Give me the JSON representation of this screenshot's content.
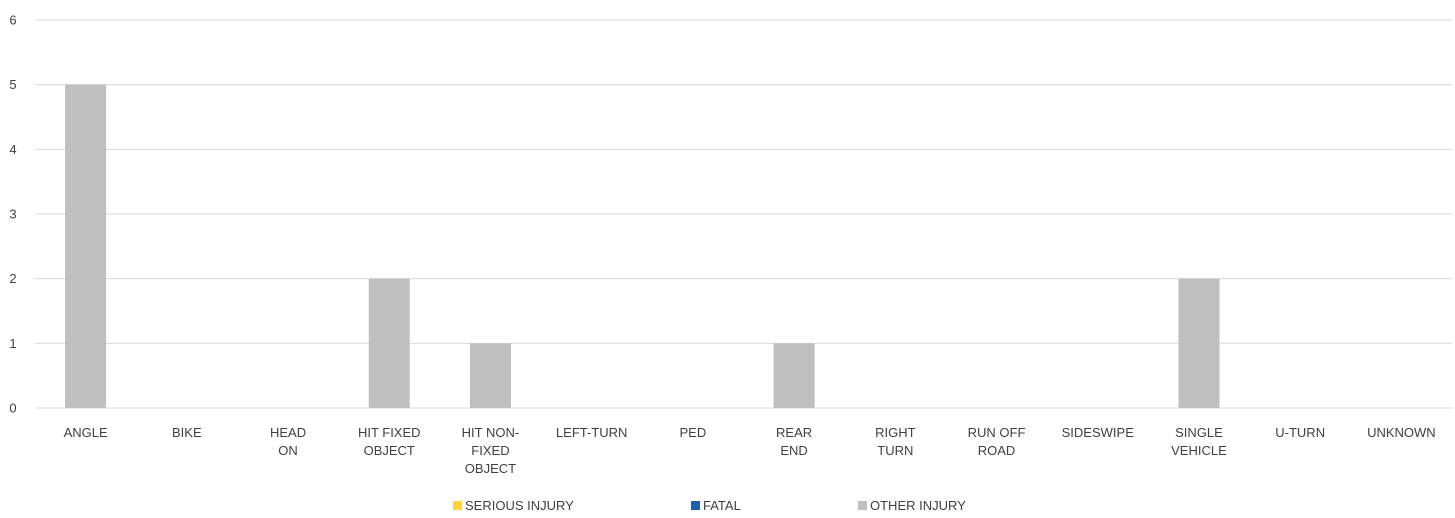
{
  "chart_data": {
    "type": "bar",
    "title": "",
    "xlabel": "",
    "ylabel": "",
    "ylim": [
      0,
      6
    ],
    "yticks": [
      "0",
      "1",
      "2",
      "3",
      "4",
      "5",
      "6"
    ],
    "grid": true,
    "legend_position": "bottom",
    "categories": [
      [
        "ANGLE"
      ],
      [
        "BIKE"
      ],
      [
        "HEAD",
        "ON"
      ],
      [
        "HIT FIXED",
        "OBJECT"
      ],
      [
        "HIT NON-",
        "FIXED",
        "OBJECT"
      ],
      [
        "LEFT-TURN"
      ],
      [
        "PED"
      ],
      [
        "REAR",
        "END"
      ],
      [
        "RIGHT",
        "TURN"
      ],
      [
        "RUN OFF",
        "ROAD"
      ],
      [
        "SIDESWIPE"
      ],
      [
        "SINGLE",
        "VEHICLE"
      ],
      [
        "U-TURN"
      ],
      [
        "UNKNOWN"
      ]
    ],
    "series": [
      {
        "name": "SERIOUS INJURY",
        "color": "#FFD23F",
        "values": [
          0,
          0,
          0,
          0,
          0,
          0,
          0,
          0,
          0,
          0,
          0,
          0,
          0,
          0
        ]
      },
      {
        "name": "FATAL",
        "color": "#1F5FA8",
        "values": [
          0,
          0,
          0,
          0,
          0,
          0,
          0,
          0,
          0,
          0,
          0,
          0,
          0,
          0
        ]
      },
      {
        "name": "OTHER INJURY",
        "color": "#BFBFBF",
        "values": [
          5,
          0,
          0,
          2,
          1,
          0,
          0,
          1,
          0,
          0,
          0,
          2,
          0,
          0
        ]
      }
    ]
  }
}
